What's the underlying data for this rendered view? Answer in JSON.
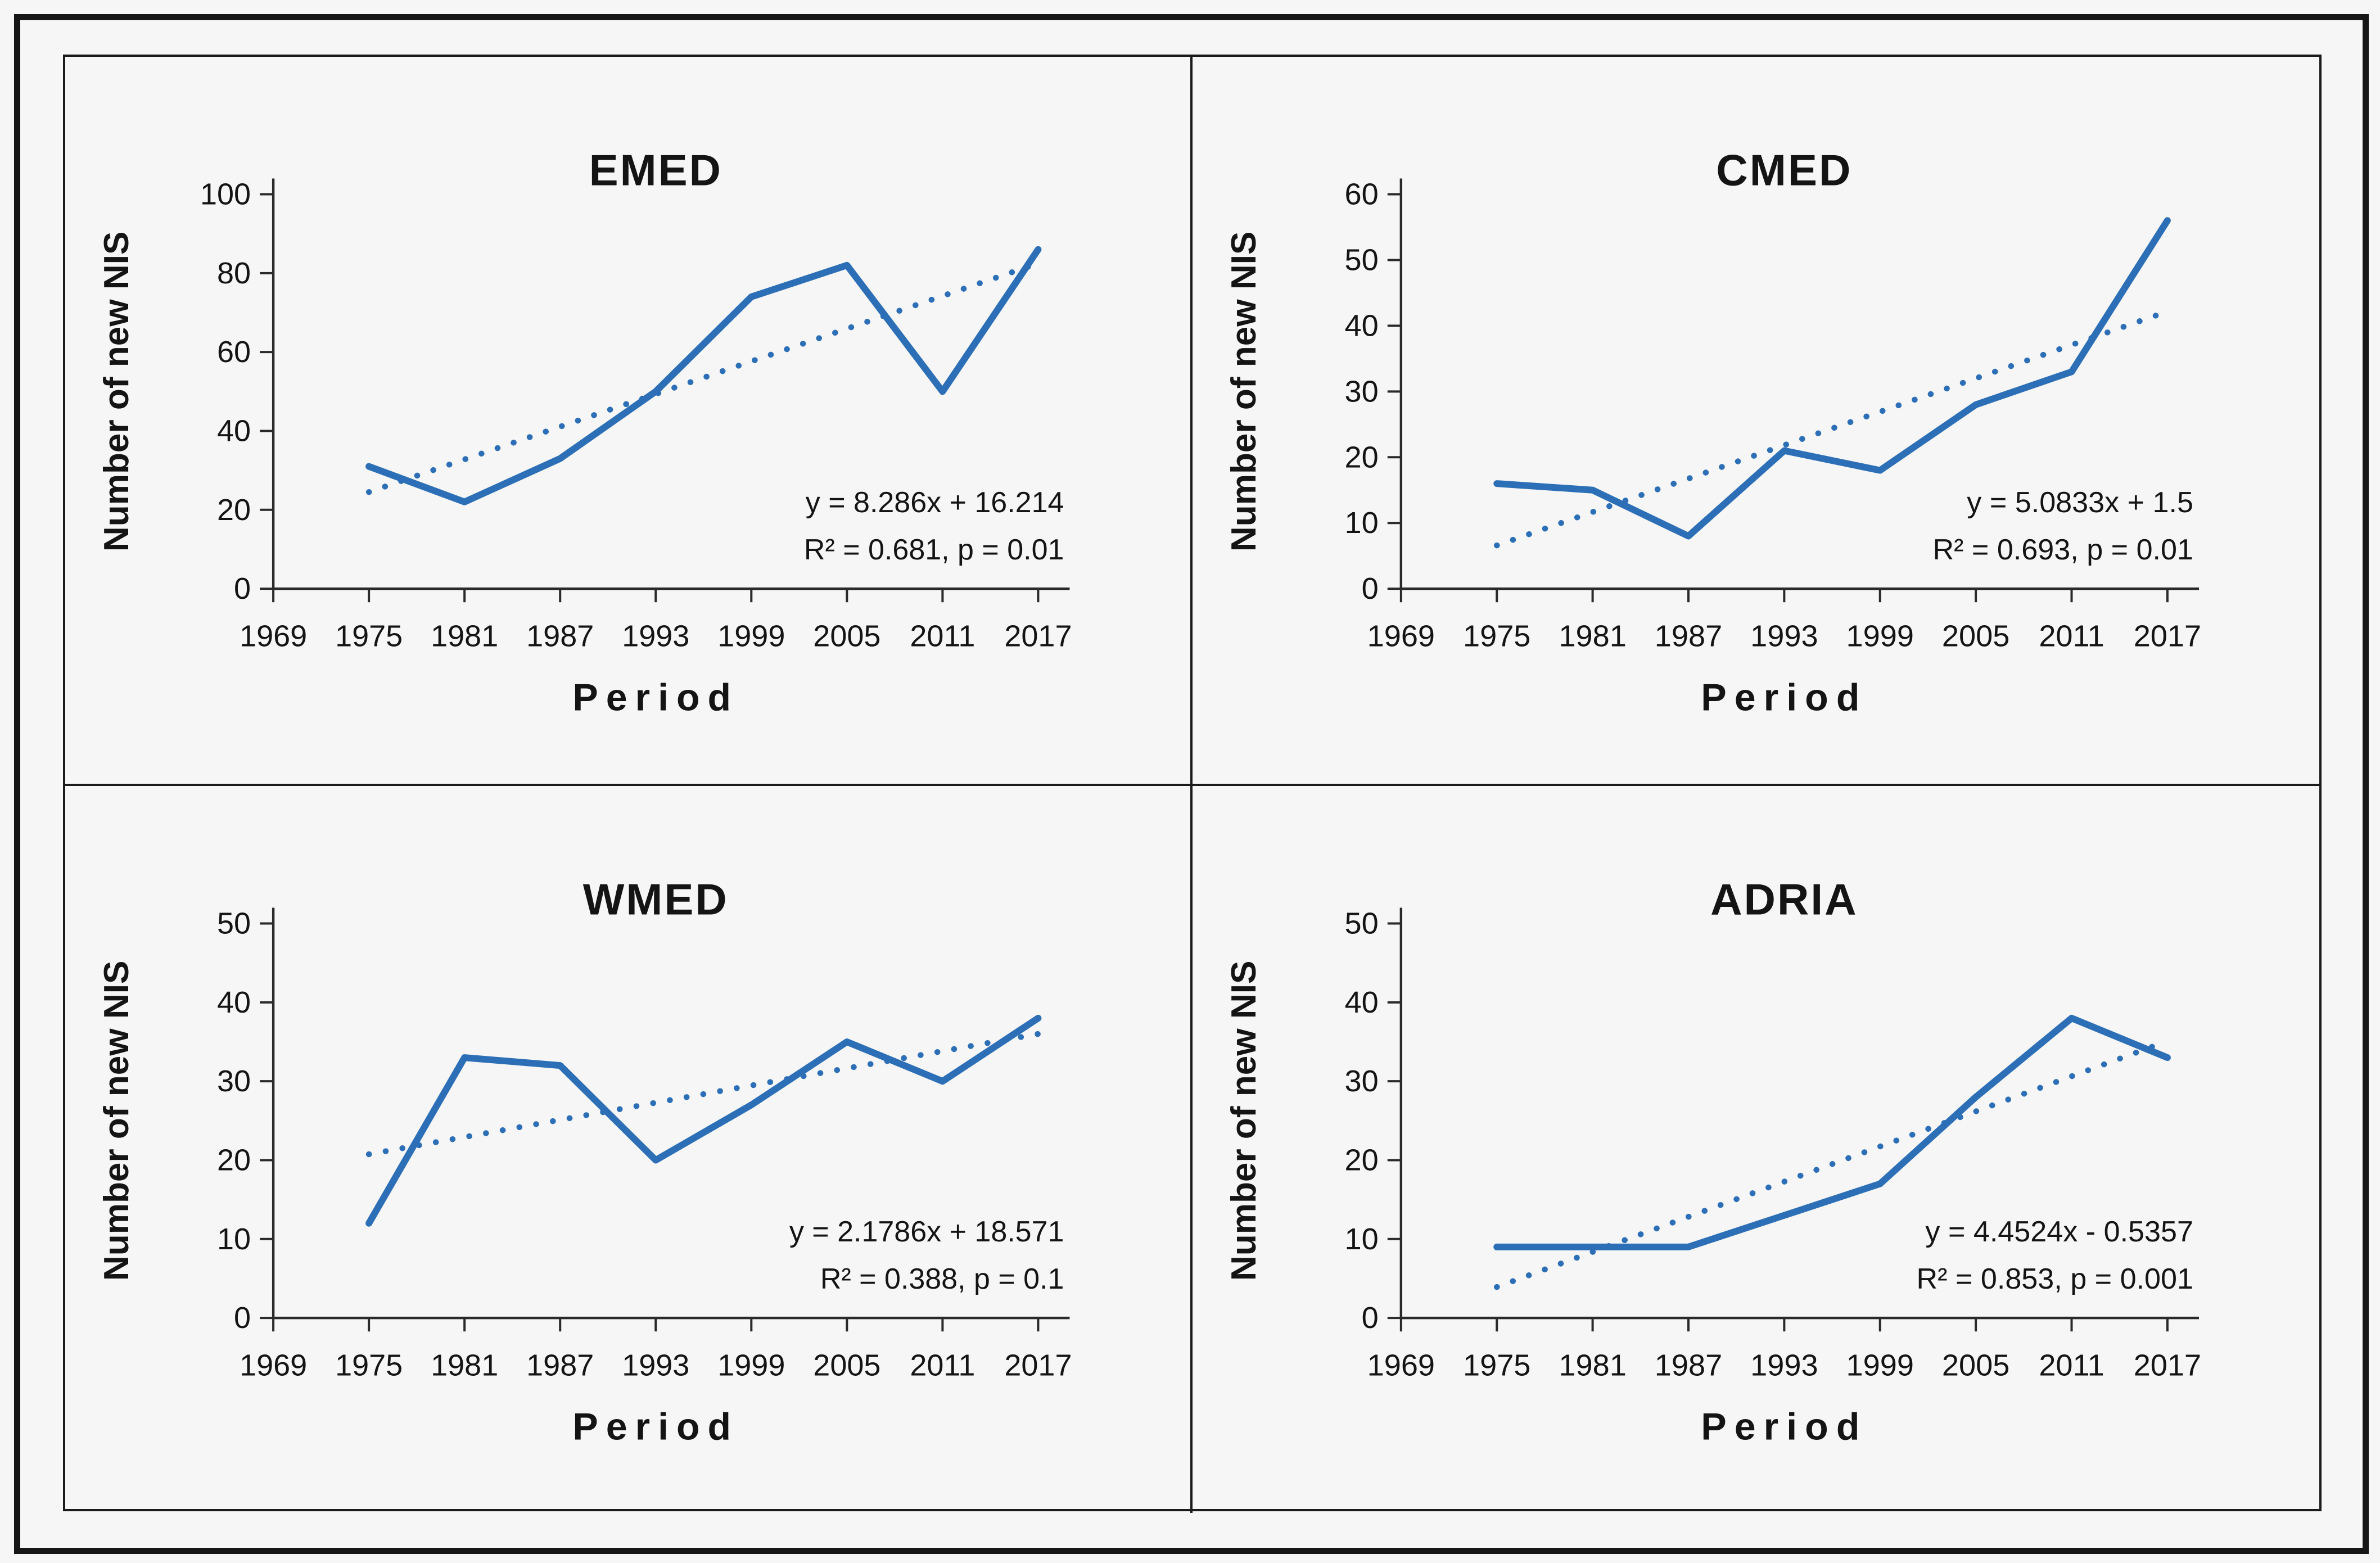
{
  "figure": {
    "ylabel": "Number of new NIS",
    "xlabel": "Period",
    "x_ticks": [
      1969,
      1975,
      1981,
      1987,
      1993,
      1999,
      2005,
      2011,
      2017
    ]
  },
  "colors": {
    "line_blue": "#2C6FB6",
    "axis": "#2a2a2a",
    "text": "#141414",
    "panel_bg": "#f6f6f7",
    "frame": "#161616"
  },
  "chart_data": [
    {
      "type": "line",
      "title": "EMED",
      "x": [
        1975,
        1981,
        1987,
        1993,
        1999,
        2005,
        2011,
        2017
      ],
      "values": [
        31,
        22,
        33,
        50,
        74,
        82,
        50,
        86
      ],
      "ylim": [
        0,
        100
      ],
      "ystep": 20,
      "trend": {
        "slope": 8.286,
        "intercept": 16.214,
        "style": "dotted"
      },
      "equation": "y = 8.286x + 16.214",
      "stats": "R² = 0.681, p = 0.01",
      "legend_position": "none",
      "grid": false
    },
    {
      "type": "line",
      "title": "CMED",
      "x": [
        1975,
        1981,
        1987,
        1993,
        1999,
        2005,
        2011,
        2017
      ],
      "values": [
        16,
        15,
        8,
        21,
        18,
        28,
        33,
        56
      ],
      "ylim": [
        0,
        60
      ],
      "ystep": 10,
      "trend": {
        "slope": 5.0833,
        "intercept": 1.5,
        "style": "dotted"
      },
      "equation": "y = 5.0833x + 1.5",
      "stats": "R² = 0.693, p = 0.01",
      "legend_position": "none",
      "grid": false
    },
    {
      "type": "line",
      "title": "WMED",
      "x": [
        1975,
        1981,
        1987,
        1993,
        1999,
        2005,
        2011,
        2017
      ],
      "values": [
        12,
        33,
        32,
        20,
        27,
        35,
        30,
        38
      ],
      "ylim": [
        0,
        50
      ],
      "ystep": 10,
      "trend": {
        "slope": 2.1786,
        "intercept": 18.571,
        "style": "dotted"
      },
      "equation": "y = 2.1786x + 18.571",
      "stats": "R² = 0.388, p = 0.1",
      "legend_position": "none",
      "grid": false
    },
    {
      "type": "line",
      "title": "ADRIA",
      "x": [
        1975,
        1981,
        1987,
        1993,
        1999,
        2005,
        2011,
        2017
      ],
      "values": [
        9,
        9,
        9,
        13,
        17,
        28,
        38,
        33
      ],
      "ylim": [
        0,
        50
      ],
      "ystep": 10,
      "trend": {
        "slope": 4.4524,
        "intercept": -0.5357,
        "style": "dotted"
      },
      "equation": "y = 4.4524x - 0.5357",
      "stats": "R² = 0.853, p = 0.001",
      "legend_position": "none",
      "grid": false
    }
  ]
}
